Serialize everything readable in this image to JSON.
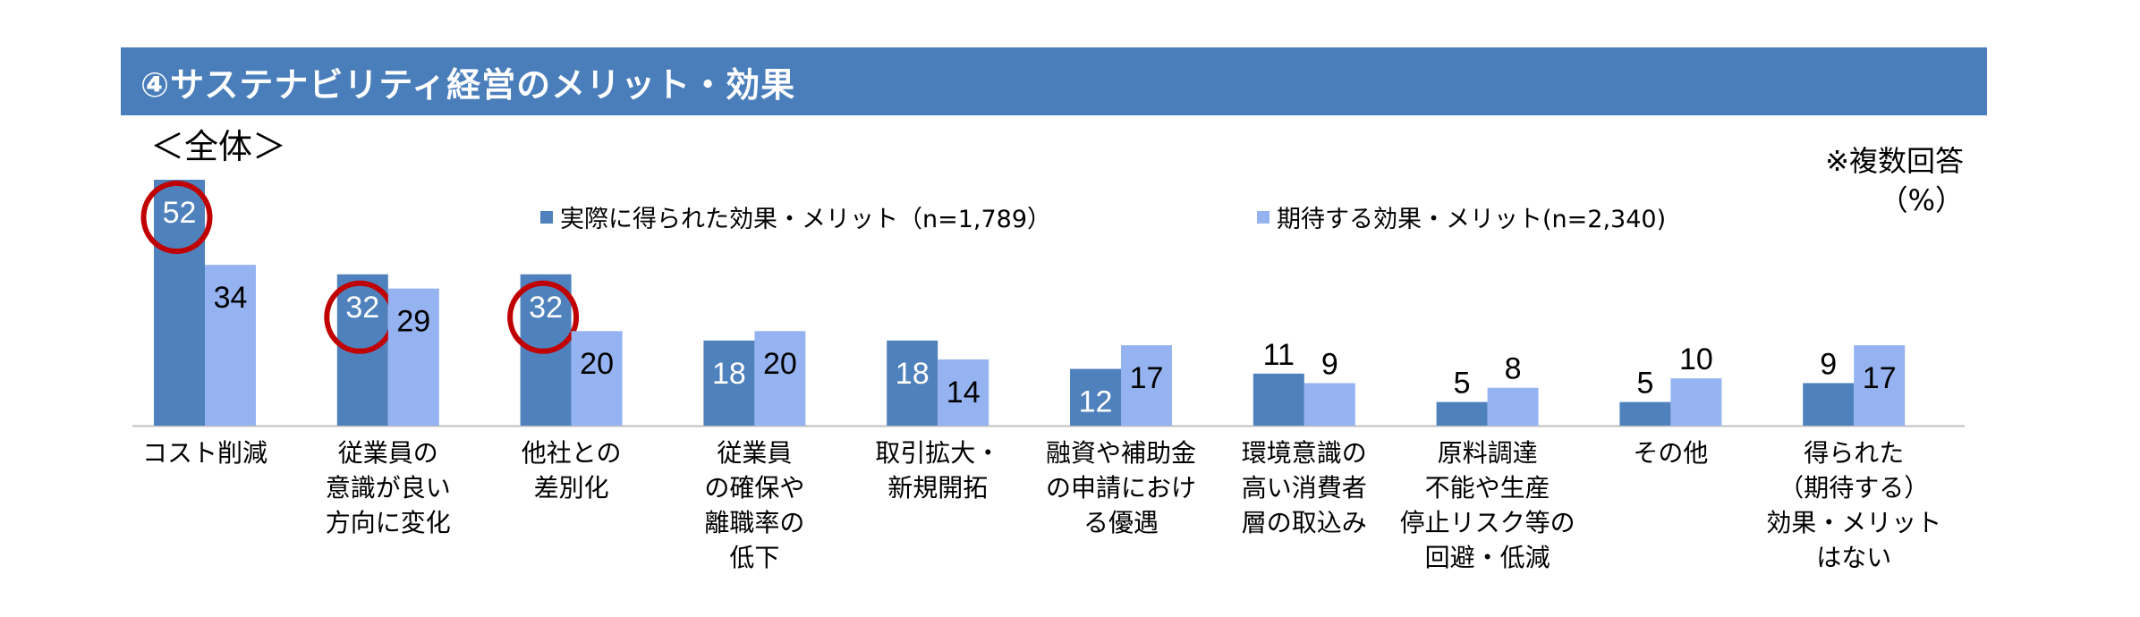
{
  "header": {
    "title": "④サステナビリティ経営のメリット・効果",
    "subtitle": "＜全体＞",
    "note_line1": "※複数回答",
    "note_line2": "（%）"
  },
  "colors": {
    "title_bar": "#4a7ebb",
    "series_actual": "#4f81bd",
    "series_expected": "#95b3f0",
    "highlight_circle": "#c00000"
  },
  "chart_data": {
    "type": "bar",
    "title": "④サステナビリティ経営のメリット・効果",
    "subtitle": "＜全体＞",
    "unit": "（%）",
    "categories": [
      "コスト削減",
      "従業員の\n意識が良い\n方向に変化",
      "他社との\n差別化",
      "従業員\nの確保や\n離職率の\n低下",
      "取引拡大・\n新規開拓",
      "融資や補助金\nの申請におけ\nる優遇",
      "環境意識の\n高い消費者\n層の取込み",
      "原料調達\n不能や生産\n停止リスク等の\n回避・低減",
      "その他",
      "得られた\n（期待する）\n効果・メリット\nはない"
    ],
    "series": [
      {
        "name": "実際に得られた効果・メリット（n=1,789）",
        "values": [
          52,
          32,
          32,
          18,
          18,
          12,
          11,
          5,
          5,
          9
        ]
      },
      {
        "name": "期待する効果・メリット(n=2,340)",
        "values": [
          34,
          29,
          20,
          20,
          14,
          17,
          9,
          8,
          10,
          17
        ]
      }
    ],
    "highlighted": [
      [
        0,
        0
      ],
      [
        0,
        1
      ],
      [
        0,
        2
      ]
    ],
    "ylim": [
      0,
      52
    ],
    "grid": false,
    "legend_position": "top"
  }
}
